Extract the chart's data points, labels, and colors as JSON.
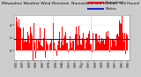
{
  "title": "Milwaukee Weather Wind Direction  Normalized and Median  (24 Hours) (New)",
  "bg_color": "#cccccc",
  "plot_bg_color": "#ffffff",
  "bar_color": "#ff0000",
  "median_color": "#0000cc",
  "legend_norm_color": "#ff0000",
  "legend_med_color": "#0000cc",
  "ylim": [
    -1.5,
    5.5
  ],
  "num_points": 288,
  "median_value": 1.8,
  "noise_scale": 1.1,
  "grid_color": "#bbbbbb",
  "title_fontsize": 3.2,
  "tick_fontsize": 2.5,
  "vline_positions": [
    96,
    192
  ],
  "vline_color": "#999999",
  "ytick_positions": [
    0,
    2,
    4
  ],
  "ytick_labels": [
    "0",
    "2",
    "4"
  ],
  "num_xticks": 18
}
